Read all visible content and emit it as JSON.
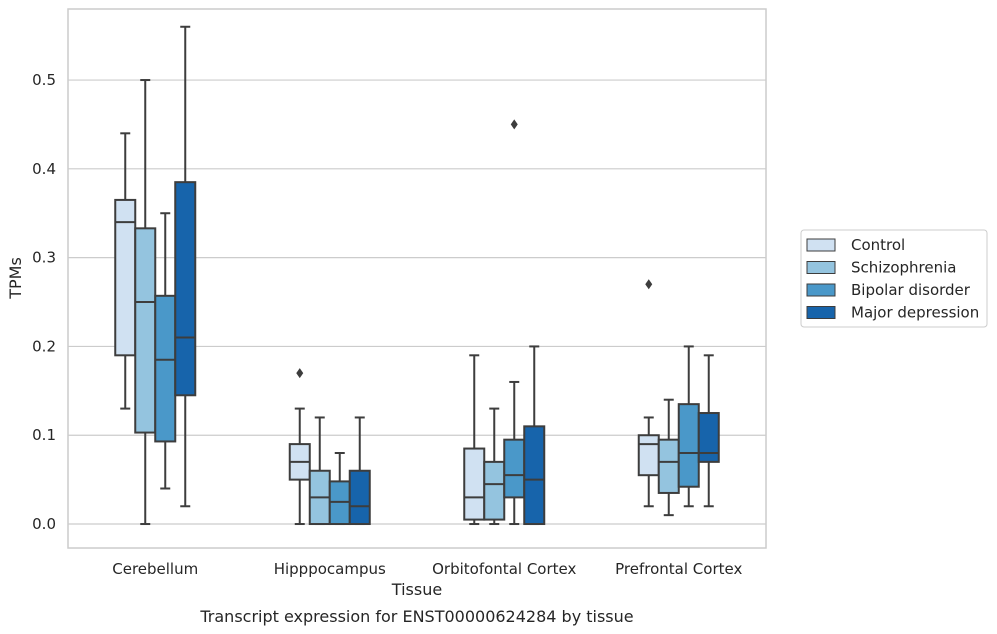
{
  "chart_data": {
    "type": "box",
    "xlabel": "Tissue",
    "ylabel": "TPMs",
    "caption": "Transcript expression for ENST00000624284 by tissue",
    "ylim": [
      -0.027,
      0.58
    ],
    "yticks": [
      0.0,
      0.1,
      0.2,
      0.3,
      0.4,
      0.5
    ],
    "ytick_labels": [
      "0.0",
      "0.1",
      "0.2",
      "0.3",
      "0.4",
      "0.5"
    ],
    "grid": "horizontal",
    "legend_position": "right",
    "categories": [
      "Cerebellum",
      "Hipppocampus",
      "Orbitofontal Cortex",
      "Prefrontal Cortex"
    ],
    "series": [
      {
        "name": "Control",
        "color": "#d0e1f2",
        "boxes": [
          {
            "whislo": 0.13,
            "q1": 0.19,
            "med": 0.34,
            "q3": 0.365,
            "whishi": 0.44,
            "fliers": []
          },
          {
            "whislo": 0.0,
            "q1": 0.05,
            "med": 0.07,
            "q3": 0.09,
            "whishi": 0.13,
            "fliers": [
              0.17
            ]
          },
          {
            "whislo": 0.0,
            "q1": 0.005,
            "med": 0.03,
            "q3": 0.085,
            "whishi": 0.19,
            "fliers": []
          },
          {
            "whislo": 0.02,
            "q1": 0.055,
            "med": 0.09,
            "q3": 0.1,
            "whishi": 0.12,
            "fliers": [
              0.27
            ]
          }
        ]
      },
      {
        "name": "Schizophrenia",
        "color": "#94c4df",
        "boxes": [
          {
            "whislo": 0.0,
            "q1": 0.103,
            "med": 0.25,
            "q3": 0.333,
            "whishi": 0.5,
            "fliers": []
          },
          {
            "whislo": 0.0,
            "q1": 0.0,
            "med": 0.03,
            "q3": 0.06,
            "whishi": 0.12,
            "fliers": []
          },
          {
            "whislo": 0.0,
            "q1": 0.005,
            "med": 0.045,
            "q3": 0.07,
            "whishi": 0.13,
            "fliers": []
          },
          {
            "whislo": 0.01,
            "q1": 0.035,
            "med": 0.07,
            "q3": 0.095,
            "whishi": 0.14,
            "fliers": []
          }
        ]
      },
      {
        "name": "Bipolar disorder",
        "color": "#4a98c9",
        "boxes": [
          {
            "whislo": 0.04,
            "q1": 0.093,
            "med": 0.185,
            "q3": 0.257,
            "whishi": 0.35,
            "fliers": []
          },
          {
            "whislo": 0.0,
            "q1": 0.0,
            "med": 0.025,
            "q3": 0.048,
            "whishi": 0.08,
            "fliers": []
          },
          {
            "whislo": 0.0,
            "q1": 0.03,
            "med": 0.055,
            "q3": 0.095,
            "whishi": 0.16,
            "fliers": [
              0.45
            ]
          },
          {
            "whislo": 0.02,
            "q1": 0.042,
            "med": 0.08,
            "q3": 0.135,
            "whishi": 0.2,
            "fliers": []
          }
        ]
      },
      {
        "name": "Major depression",
        "color": "#1764ab",
        "boxes": [
          {
            "whislo": 0.02,
            "q1": 0.145,
            "med": 0.21,
            "q3": 0.385,
            "whishi": 0.56,
            "fliers": []
          },
          {
            "whislo": 0.0,
            "q1": 0.0,
            "med": 0.02,
            "q3": 0.06,
            "whishi": 0.12,
            "fliers": []
          },
          {
            "whislo": 0.0,
            "q1": 0.0,
            "med": 0.05,
            "q3": 0.11,
            "whishi": 0.2,
            "fliers": []
          },
          {
            "whislo": 0.02,
            "q1": 0.07,
            "med": 0.08,
            "q3": 0.125,
            "whishi": 0.19,
            "fliers": []
          }
        ]
      }
    ]
  }
}
